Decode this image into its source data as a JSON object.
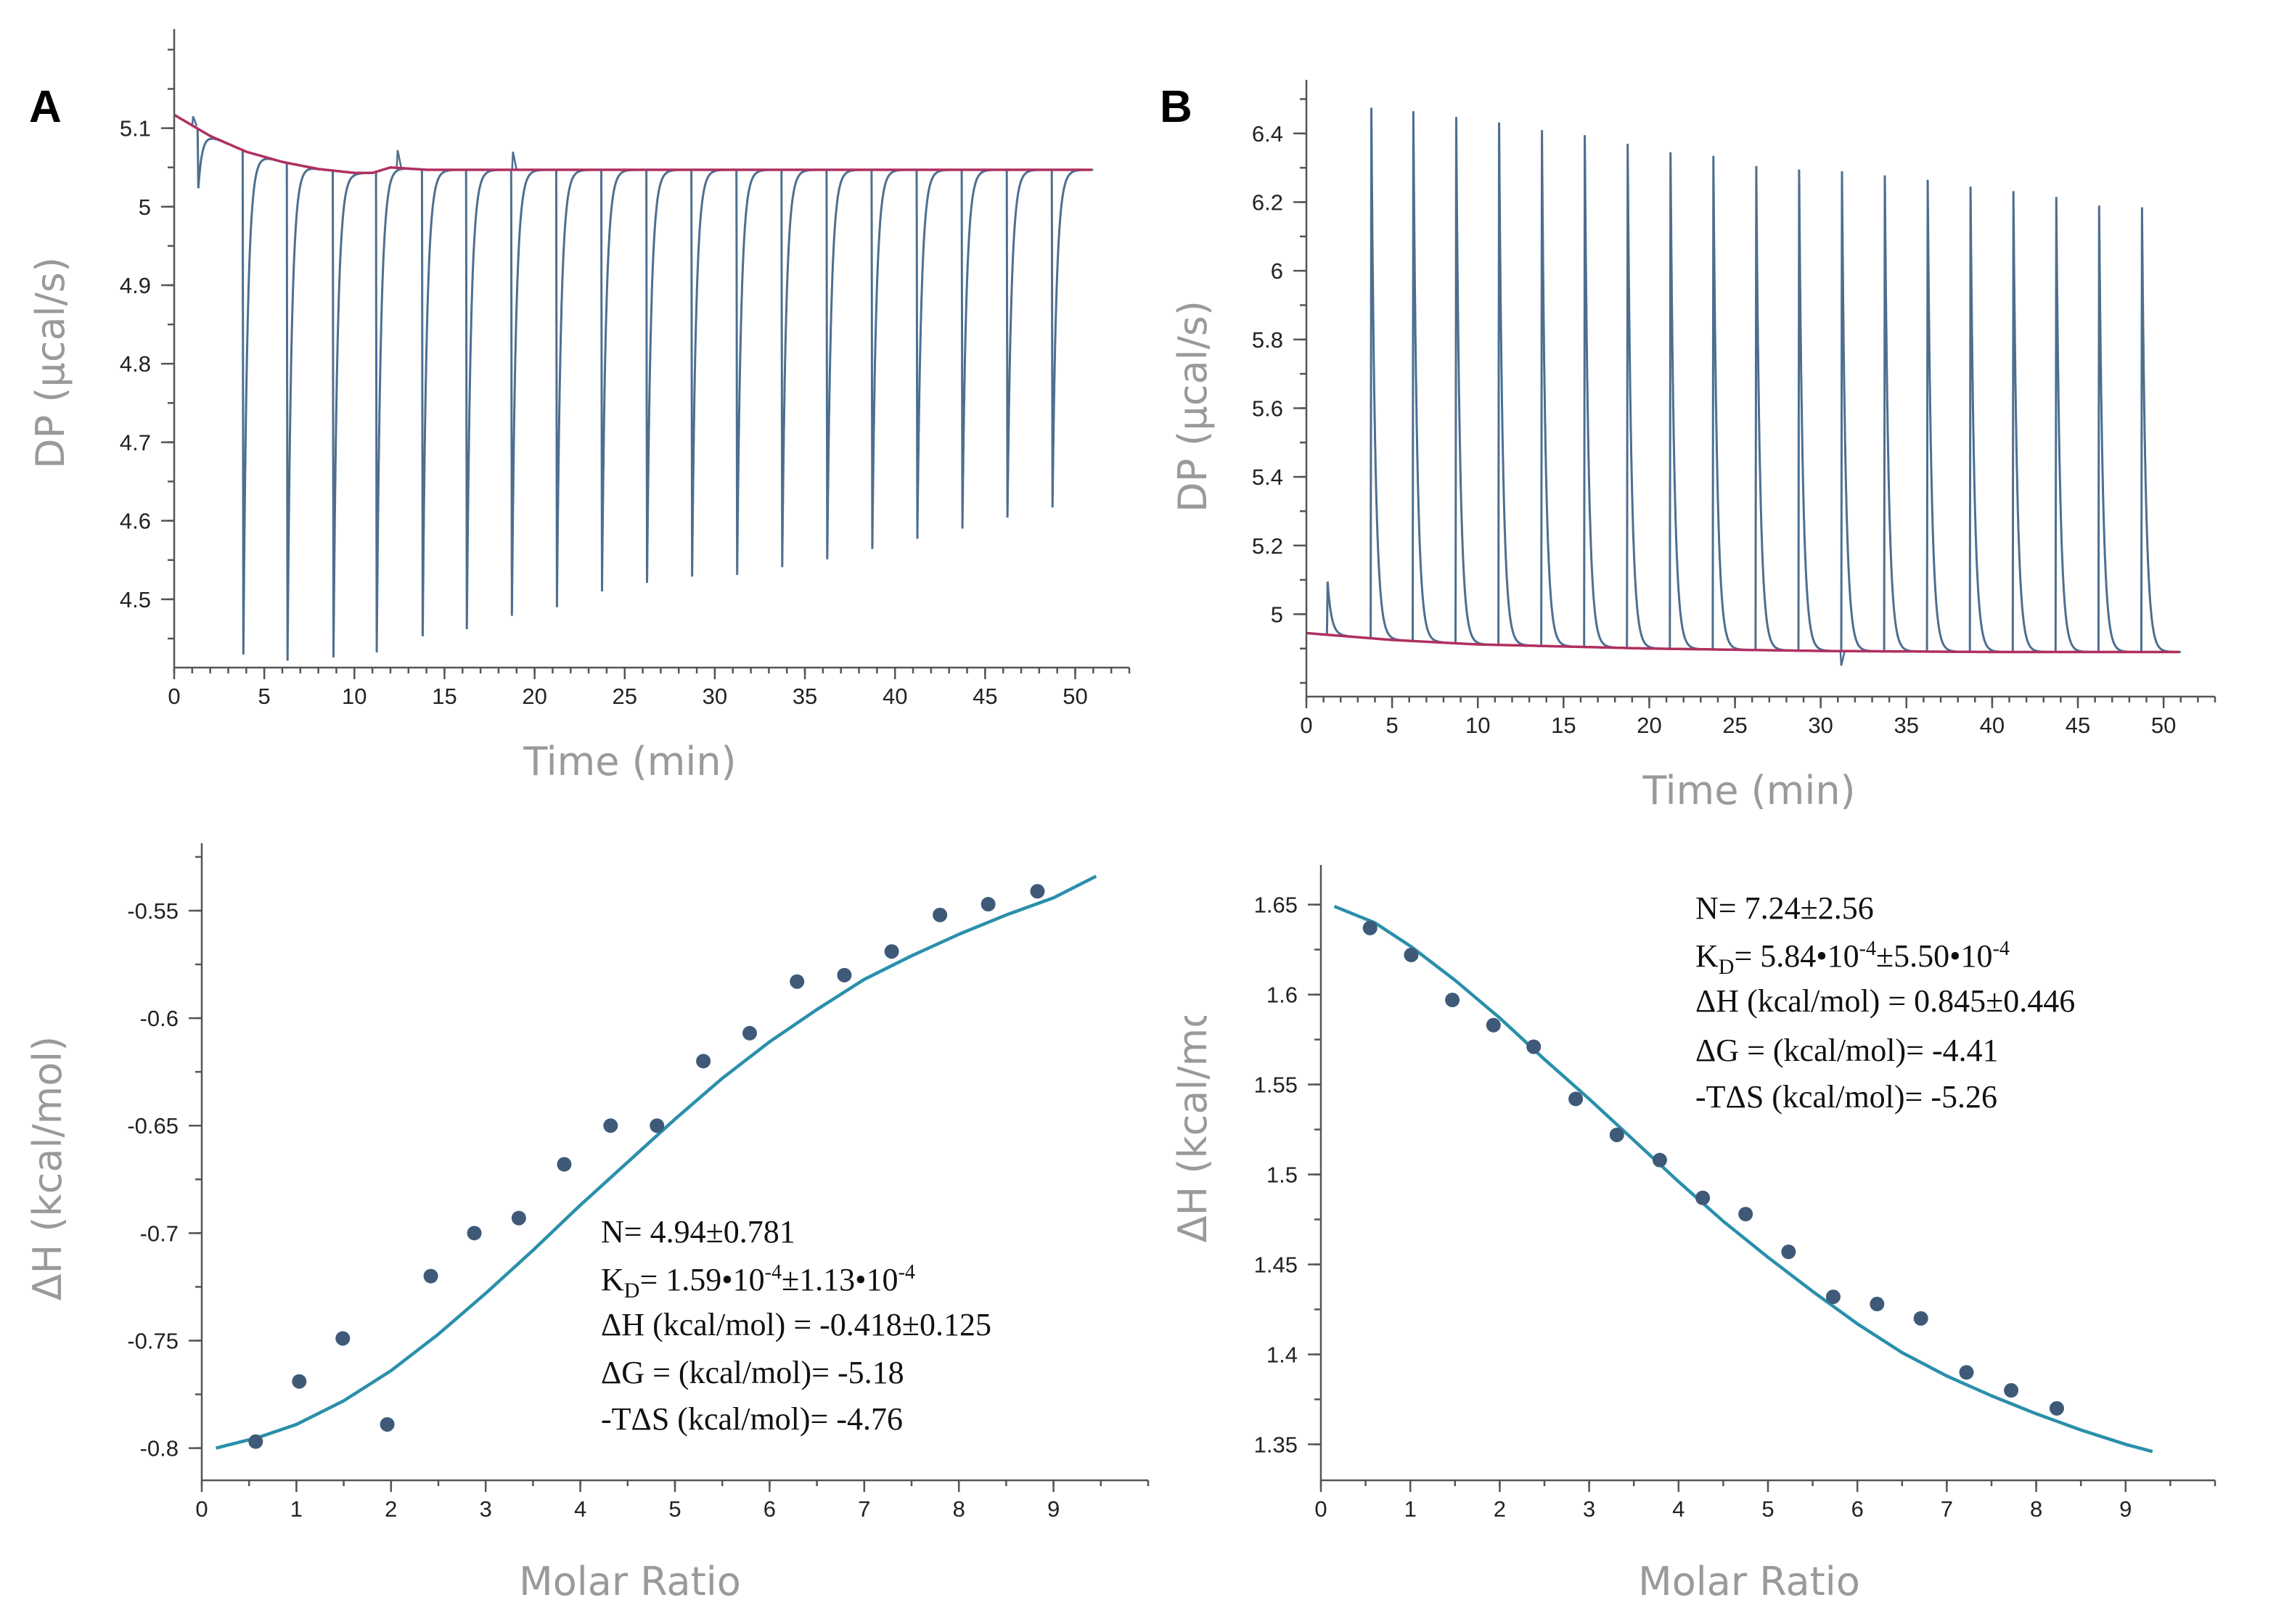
{
  "panels": [
    {
      "label": "A"
    },
    {
      "label": "B"
    }
  ],
  "colors": {
    "trace": "#4d6f8f",
    "baseline": "#b03060",
    "fit": "#2a8fab",
    "points": "#3e5a78"
  },
  "chart_data": [
    {
      "id": "A-top",
      "type": "line",
      "title": "",
      "xlabel": "Time (min)",
      "ylabel": "DP (µcal/s)",
      "xlim": [
        0,
        53
      ],
      "ylim": [
        4.413,
        5.217
      ],
      "x_ticks": [
        0,
        5,
        10,
        15,
        20,
        25,
        30,
        35,
        40,
        45,
        50
      ],
      "y_ticks": [
        4.5,
        4.6,
        4.7,
        4.8,
        4.9,
        5,
        5.1
      ],
      "x_tick_labels": [
        "0",
        "5",
        "10",
        "15",
        "20",
        "25",
        "30",
        "35",
        "40",
        "45",
        "50"
      ],
      "y_tick_labels": [
        "4.5",
        "4.6",
        "4.7",
        "4.8",
        "4.9",
        "5",
        "5.1"
      ],
      "baseline": {
        "x": [
          0,
          2,
          4,
          6,
          8,
          10,
          11,
          12,
          14,
          20,
          30,
          40,
          51
        ],
        "y": [
          5.117,
          5.09,
          5.07,
          5.057,
          5.048,
          5.043,
          5.043,
          5.05,
          5.047,
          5.047,
          5.047,
          5.047,
          5.047
        ]
      },
      "injections": {
        "t": [
          1.3,
          3.8,
          6.25,
          8.8,
          11.2,
          13.75,
          16.2,
          18.7,
          21.2,
          23.7,
          26.2,
          28.7,
          31.2,
          33.7,
          36.2,
          38.7,
          41.2,
          43.7,
          46.2,
          48.7
        ],
        "peak": [
          5.024,
          4.43,
          4.422,
          4.426,
          4.432,
          4.453,
          4.462,
          4.479,
          4.49,
          4.51,
          4.521,
          4.529,
          4.531,
          4.541,
          4.551,
          4.564,
          4.577,
          4.59,
          4.604,
          4.617
        ]
      },
      "spike_up": [
        {
          "t": 1.05,
          "v": 5.115
        },
        {
          "t": 12.4,
          "v": 5.072
        },
        {
          "t": 18.8,
          "v": 5.07
        }
      ]
    },
    {
      "id": "B-top",
      "type": "line",
      "title": "",
      "xlabel": "Time (min)",
      "ylabel": "DP (µcal/s)",
      "xlim": [
        0,
        53
      ],
      "ylim": [
        4.76,
        6.535
      ],
      "x_ticks": [
        0,
        5,
        10,
        15,
        20,
        25,
        30,
        35,
        40,
        45,
        50
      ],
      "y_ticks": [
        5,
        5.2,
        5.4,
        5.6,
        5.8,
        6,
        6.2,
        6.4
      ],
      "x_tick_labels": [
        "0",
        "5",
        "10",
        "15",
        "20",
        "25",
        "30",
        "35",
        "40",
        "45",
        "50"
      ],
      "y_tick_labels": [
        "5",
        "5.2",
        "5.4",
        "5.6",
        "5.8",
        "6",
        "6.2",
        "6.4"
      ],
      "baseline": {
        "x": [
          0,
          5,
          10,
          20,
          30,
          40,
          51
        ],
        "y": [
          4.945,
          4.925,
          4.912,
          4.9,
          4.893,
          4.89,
          4.89
        ]
      },
      "injections": {
        "t": [
          1.2,
          3.75,
          6.2,
          8.7,
          11.2,
          13.7,
          16.2,
          18.7,
          21.2,
          23.7,
          26.2,
          28.7,
          31.2,
          33.7,
          36.2,
          38.7,
          41.2,
          43.7,
          46.2,
          48.7
        ],
        "peak": [
          5.095,
          6.475,
          6.465,
          6.448,
          6.432,
          6.41,
          6.395,
          6.37,
          6.345,
          6.335,
          6.305,
          6.295,
          6.29,
          6.278,
          6.265,
          6.245,
          6.232,
          6.215,
          6.19,
          6.185
        ]
      },
      "spike_down": [
        {
          "t": 31.2,
          "v": 4.85
        }
      ]
    },
    {
      "id": "A-bottom",
      "type": "scatter",
      "title": "",
      "xlabel": "Molar Ratio",
      "ylabel": "ΔH (kcal/mol)",
      "xlim": [
        0,
        10
      ],
      "ylim": [
        -0.815,
        -0.522
      ],
      "x_ticks": [
        0,
        1,
        2,
        3,
        4,
        5,
        6,
        7,
        8,
        9
      ],
      "y_ticks": [
        -0.8,
        -0.75,
        -0.7,
        -0.65,
        -0.6,
        -0.55
      ],
      "x_tick_labels": [
        "0",
        "1",
        "2",
        "3",
        "4",
        "5",
        "6",
        "7",
        "8",
        "9"
      ],
      "y_tick_labels": [
        "-0.8",
        "-0.75",
        "-0.7",
        "-0.65",
        "-0.6",
        "-0.55"
      ],
      "points": {
        "x": [
          0.57,
          1.03,
          1.49,
          1.96,
          2.42,
          2.88,
          3.35,
          3.83,
          4.32,
          4.81,
          5.3,
          5.79,
          6.29,
          6.79,
          7.29,
          7.8,
          8.31,
          8.83
        ],
        "y": [
          -0.797,
          -0.769,
          -0.749,
          -0.789,
          -0.72,
          -0.7,
          -0.693,
          -0.668,
          -0.65,
          -0.65,
          -0.62,
          -0.607,
          -0.583,
          -0.58,
          -0.569,
          -0.552,
          -0.547,
          -0.541
        ]
      },
      "fit": {
        "x": [
          0.15,
          0.6,
          1,
          1.5,
          2,
          2.5,
          3,
          3.5,
          4,
          4.5,
          5,
          5.5,
          6,
          6.5,
          7,
          7.5,
          8,
          8.5,
          9,
          9.45
        ],
        "y": [
          -0.8,
          -0.795,
          -0.789,
          -0.778,
          -0.764,
          -0.747,
          -0.728,
          -0.708,
          -0.687,
          -0.667,
          -0.647,
          -0.628,
          -0.611,
          -0.596,
          -0.582,
          -0.571,
          -0.561,
          -0.552,
          -0.544,
          -0.534
        ]
      },
      "annotation": {
        "n": "N= 4.94±0.781",
        "kd_prefix": "K",
        "kd_sub": "D",
        "kd_rest": "= 1.59•10",
        "kd_exp1": "-4",
        "kd_mid": "±1.13•10",
        "kd_exp2": "-4",
        "dh": "ΔH (kcal/mol) = -0.418±0.125",
        "dg": "ΔG = (kcal/mol)= -5.18",
        "tds": "-TΔS (kcal/mol)= -4.76"
      }
    },
    {
      "id": "B-bottom",
      "type": "scatter",
      "title": "",
      "xlabel": "Molar Ratio",
      "ylabel": "ΔH (kcal/mol)",
      "xlim": [
        0,
        10
      ],
      "ylim": [
        1.33,
        1.668
      ],
      "x_ticks": [
        0,
        1,
        2,
        3,
        4,
        5,
        6,
        7,
        8,
        9
      ],
      "y_ticks": [
        1.35,
        1.4,
        1.45,
        1.5,
        1.55,
        1.6,
        1.65
      ],
      "x_tick_labels": [
        "0",
        "1",
        "2",
        "3",
        "4",
        "5",
        "6",
        "7",
        "8",
        "9"
      ],
      "y_tick_labels": [
        "1.35",
        "1.4",
        "1.45",
        "1.5",
        "1.55",
        "1.6",
        "1.65"
      ],
      "points": {
        "x": [
          0.55,
          1.01,
          1.47,
          1.93,
          2.38,
          2.85,
          3.31,
          3.79,
          4.27,
          4.75,
          5.23,
          5.73,
          6.22,
          6.71,
          7.22,
          7.72,
          8.23
        ],
        "y": [
          1.637,
          1.622,
          1.597,
          1.583,
          1.571,
          1.542,
          1.522,
          1.508,
          1.487,
          1.478,
          1.457,
          1.432,
          1.428,
          1.42,
          1.39,
          1.38,
          1.37
        ]
      },
      "fit": {
        "x": [
          0.15,
          0.6,
          1,
          1.5,
          2,
          2.5,
          3,
          3.5,
          4,
          4.5,
          5,
          5.5,
          6,
          6.5,
          7,
          7.5,
          8,
          8.5,
          9,
          9.3
        ],
        "y": [
          1.649,
          1.64,
          1.627,
          1.608,
          1.587,
          1.564,
          1.542,
          1.519,
          1.496,
          1.474,
          1.454,
          1.435,
          1.417,
          1.401,
          1.388,
          1.377,
          1.367,
          1.358,
          1.35,
          1.346
        ]
      },
      "annotation": {
        "n": "N= 7.24±2.56",
        "kd_prefix": "K",
        "kd_sub": "D",
        "kd_rest": "= 5.84•10",
        "kd_exp1": "-4",
        "kd_mid": "±5.50•10",
        "kd_exp2": "-4",
        "dh": "ΔH (kcal/mol) = 0.845±0.446",
        "dg": "ΔG = (kcal/mol)= -4.41",
        "tds": "-TΔS (kcal/mol)= -5.26"
      }
    }
  ]
}
